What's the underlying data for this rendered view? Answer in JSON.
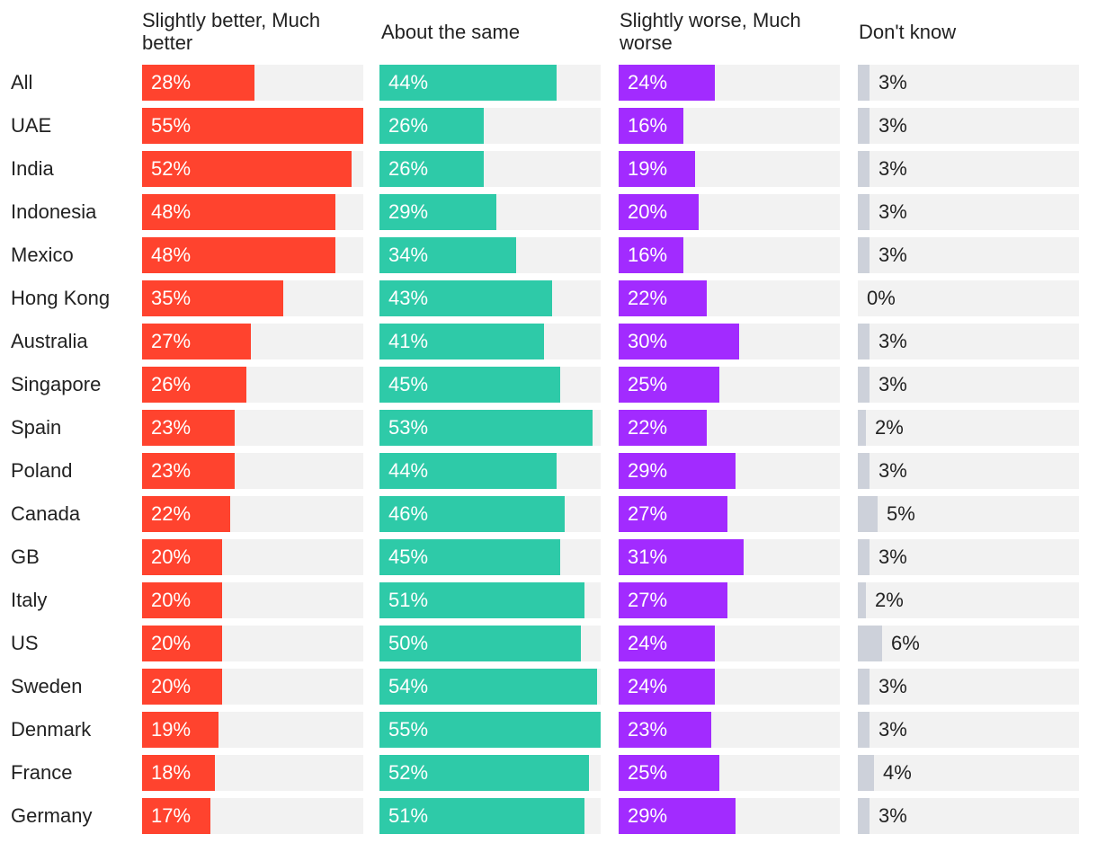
{
  "chart_data": {
    "type": "bar",
    "orientation": "horizontal",
    "layout": "small-multiples",
    "categories": [
      "All",
      "UAE",
      "India",
      "Indonesia",
      "Mexico",
      "Hong Kong",
      "Australia",
      "Singapore",
      "Spain",
      "Poland",
      "Canada",
      "GB",
      "Italy",
      "US",
      "Sweden",
      "Denmark",
      "France",
      "Germany"
    ],
    "series": [
      {
        "name": "Slightly better, Much better",
        "color": "#ff432e",
        "values": [
          28,
          55,
          52,
          48,
          48,
          35,
          27,
          26,
          23,
          23,
          22,
          20,
          20,
          20,
          20,
          19,
          18,
          17
        ],
        "labels": [
          "28%",
          "55%",
          "52%",
          "48%",
          "48%",
          "35%",
          "27%",
          "26%",
          "23%",
          "23%",
          "22%",
          "20%",
          "20%",
          "20%",
          "20%",
          "19%",
          "18%",
          "17%"
        ]
      },
      {
        "name": "About the same",
        "color": "#2ecaa8",
        "values": [
          44,
          26,
          26,
          29,
          34,
          43,
          41,
          45,
          53,
          44,
          46,
          45,
          51,
          50,
          54,
          55,
          52,
          51
        ],
        "labels": [
          "44%",
          "26%",
          "26%",
          "29%",
          "34%",
          "43%",
          "41%",
          "45%",
          "53%",
          "44%",
          "46%",
          "45%",
          "51%",
          "50%",
          "54%",
          "55%",
          "52%",
          "51%"
        ]
      },
      {
        "name": "Slightly worse, Much worse",
        "color": "#a22bff",
        "values": [
          24,
          16,
          19,
          20,
          16,
          22,
          30,
          25,
          22,
          29,
          27,
          31,
          27,
          24,
          24,
          23,
          25,
          29
        ],
        "labels": [
          "24%",
          "16%",
          "19%",
          "20%",
          "16%",
          "22%",
          "30%",
          "25%",
          "22%",
          "29%",
          "27%",
          "31%",
          "27%",
          "24%",
          "24%",
          "23%",
          "25%",
          "29%"
        ]
      },
      {
        "name": "Don't know",
        "color": "#cdd1da",
        "values": [
          3,
          3,
          3,
          3,
          3,
          0,
          3,
          3,
          2,
          3,
          5,
          3,
          2,
          6,
          3,
          3,
          4,
          3
        ],
        "labels": [
          "3%",
          "3%",
          "3%",
          "3%",
          "3%",
          "0%",
          "3%",
          "3%",
          "2%",
          "3%",
          "5%",
          "3%",
          "2%",
          "6%",
          "3%",
          "3%",
          "4%",
          "3%"
        ]
      }
    ],
    "xlim": [
      0,
      55
    ],
    "title": "",
    "xlabel": "",
    "ylabel": "",
    "grid": false,
    "legend": "column-headers-top"
  }
}
